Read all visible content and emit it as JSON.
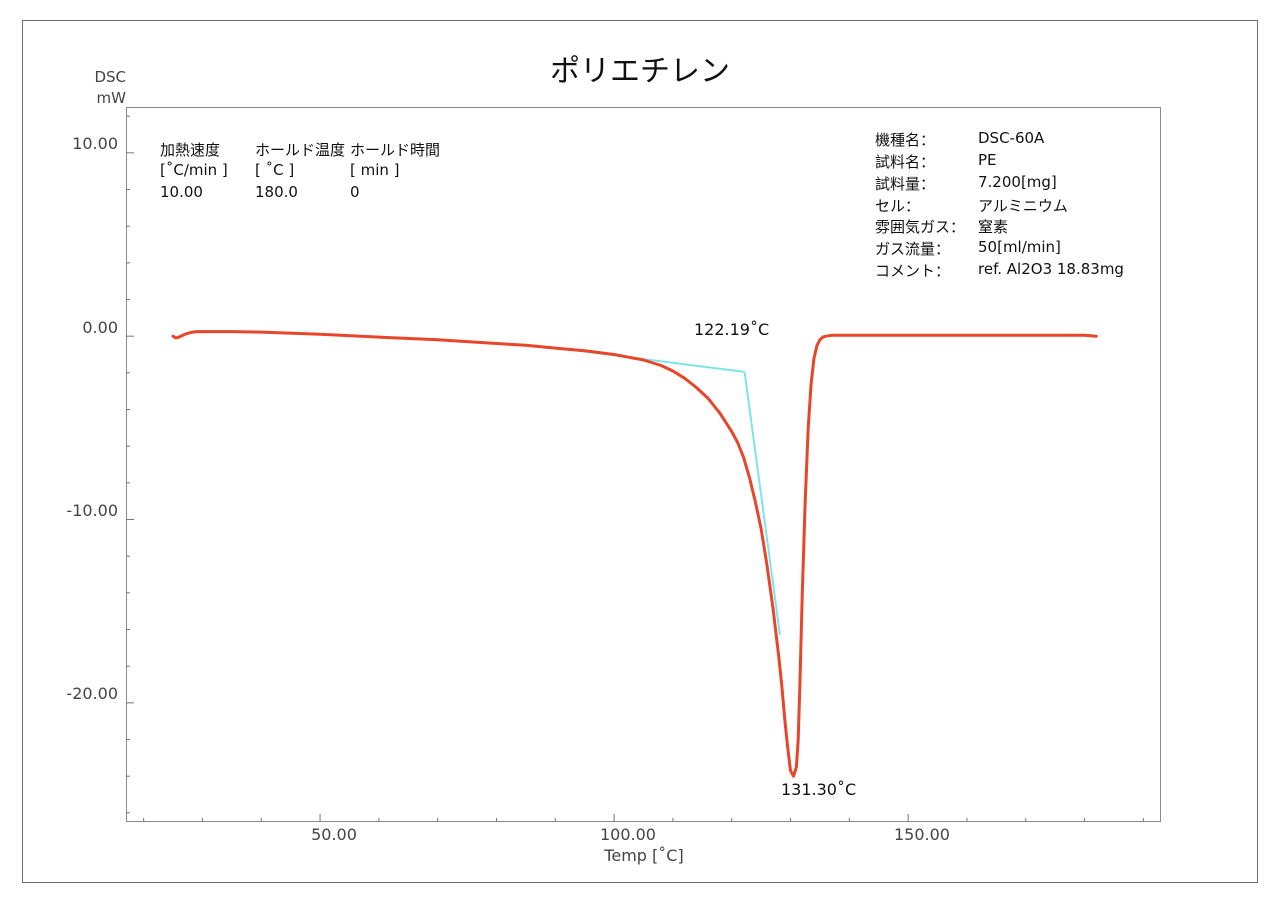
{
  "chart_data": {
    "type": "line",
    "title": "ポリエチレン",
    "ylabel_line1": "DSC",
    "ylabel_line2": "mW",
    "xlabel": "Temp  [˚C]",
    "xlim": [
      17,
      193
    ],
    "ylim": [
      -26.5,
      12.5
    ],
    "x_ticks": [
      50,
      100,
      150
    ],
    "x_tick_labels": [
      "50.00",
      "100.00",
      "150.00"
    ],
    "y_ticks": [
      10,
      0,
      -10,
      -20
    ],
    "y_tick_labels": [
      "10.00",
      "0.00",
      "-10.00",
      "-20.00"
    ],
    "grid": false,
    "colors": {
      "curve": "#e8462a",
      "baseline": "#7fe3ea"
    },
    "series": [
      {
        "x": [
          25,
          25.5,
          26,
          27,
          28,
          29,
          30,
          35,
          40,
          50,
          60,
          70,
          80,
          85,
          90,
          95,
          100,
          105,
          108,
          110,
          112,
          114,
          116,
          118,
          120,
          121,
          122,
          123,
          124,
          125,
          126,
          127,
          128,
          128.5,
          129,
          129.5,
          130,
          130.5,
          131,
          131.3,
          131.6,
          132,
          132.5,
          133,
          133.5,
          134,
          134.5,
          135,
          135.5,
          136,
          137,
          138,
          140,
          145,
          150,
          160,
          170,
          175,
          180,
          182
        ],
        "y": [
          0.0,
          -0.1,
          -0.05,
          0.1,
          0.2,
          0.25,
          0.25,
          0.25,
          0.22,
          0.1,
          -0.05,
          -0.2,
          -0.4,
          -0.5,
          -0.65,
          -0.8,
          -1.0,
          -1.3,
          -1.6,
          -1.9,
          -2.3,
          -2.8,
          -3.4,
          -4.2,
          -5.2,
          -5.8,
          -6.6,
          -7.7,
          -9.0,
          -10.5,
          -12.5,
          -14.8,
          -17.5,
          -19.0,
          -20.8,
          -22.4,
          -23.7,
          -24.0,
          -23.5,
          -22.0,
          -19.0,
          -14.0,
          -9.0,
          -5.0,
          -2.6,
          -1.2,
          -0.5,
          -0.2,
          -0.05,
          0.0,
          0.05,
          0.05,
          0.05,
          0.05,
          0.05,
          0.05,
          0.05,
          0.05,
          0.05,
          0.0
        ]
      }
    ],
    "tangent_lines": [
      {
        "x": [
          89,
          122.19
        ],
        "y": [
          -0.6,
          -1.95
        ]
      },
      {
        "x": [
          122.19,
          128.2
        ],
        "y": [
          -1.95,
          -16.3
        ]
      }
    ],
    "annotations": [
      {
        "text": "122.19˚C",
        "x": 122.19,
        "y": -1.95
      },
      {
        "text": "131.30˚C",
        "x": 131.3,
        "y": -24.0
      }
    ]
  },
  "conditions": {
    "headers": [
      "加熱速度",
      "ホールド温度",
      "ホールド時間"
    ],
    "units": [
      "[˚C/min ]",
      "[  ˚C   ]",
      "[   min   ]"
    ],
    "values": [
      "10.00",
      "180.0",
      "0"
    ]
  },
  "sample_info": [
    {
      "label": "機種名：",
      "value": "DSC-60A"
    },
    {
      "label": "試料名：",
      "value": "PE"
    },
    {
      "label": "試料量：",
      "value": "7.200[mg]"
    },
    {
      "label": "セル：",
      "value": "アルミニウム"
    },
    {
      "label": "雰囲気ガス：",
      "value": "窒素"
    },
    {
      "label": "ガス流量：",
      "value": "50[ml/min]"
    },
    {
      "label": "コメント：",
      "value": "ref. Al2O3 18.83mg"
    }
  ]
}
